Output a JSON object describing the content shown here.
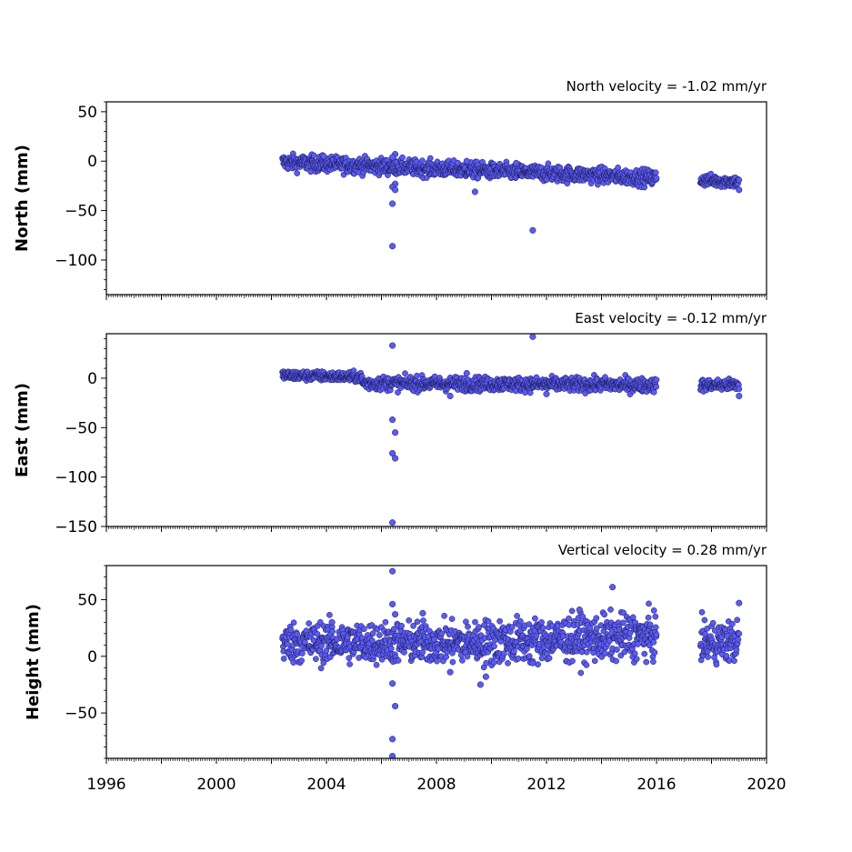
{
  "colors": {
    "point_fill": "#5b5bf2",
    "point_edge": "#15154a",
    "axis": "#000000"
  },
  "x_tick_labels": [
    "1996",
    "2000",
    "2004",
    "2008",
    "2012",
    "2016",
    "2020"
  ],
  "chart_data": [
    {
      "type": "scatter",
      "title": "North velocity = -1.02 mm/yr",
      "ylabel": "North (mm)",
      "xlim": [
        1996,
        2020
      ],
      "ylim": [
        -135,
        60
      ],
      "yticks": [
        50,
        0,
        -50,
        -100
      ],
      "ytick_labels": [
        "50",
        "0",
        "−50",
        "−100"
      ],
      "segments": [
        {
          "x0": 2002.4,
          "x1": 2016.0,
          "y0": -1,
          "y1": -17,
          "spread": 4
        },
        {
          "x0": 2017.6,
          "x1": 2019.0,
          "y0": -19,
          "y1": -21,
          "spread": 3
        }
      ],
      "outliers": [
        {
          "x": 2006.5,
          "y": 7
        },
        {
          "x": 2006.4,
          "y": 4
        },
        {
          "x": 2006.5,
          "y": -23
        },
        {
          "x": 2006.4,
          "y": -26
        },
        {
          "x": 2006.5,
          "y": -29
        },
        {
          "x": 2006.4,
          "y": -43
        },
        {
          "x": 2006.4,
          "y": -86
        },
        {
          "x": 2009.4,
          "y": -31
        },
        {
          "x": 2011.5,
          "y": -70
        },
        {
          "x": 2003.9,
          "y": 5
        },
        {
          "x": 2009.1,
          "y": 0
        },
        {
          "x": 2010.9,
          "y": -2
        },
        {
          "x": 2019.0,
          "y": -29
        }
      ]
    },
    {
      "type": "scatter",
      "title": "East velocity = -0.12 mm/yr",
      "ylabel": "East (mm)",
      "xlim": [
        1996,
        2020
      ],
      "ylim": [
        -150,
        45
      ],
      "yticks": [
        0,
        -50,
        -100,
        -150
      ],
      "ytick_labels": [
        "0",
        "−50",
        "−100",
        "−150"
      ],
      "segments": [
        {
          "x0": 2002.4,
          "x1": 2005.3,
          "y0": 3,
          "y1": 1,
          "spread": 2.5
        },
        {
          "x0": 2005.3,
          "x1": 2016.0,
          "y0": -5,
          "y1": -7,
          "spread": 3.5
        },
        {
          "x0": 2017.6,
          "x1": 2019.0,
          "y0": -7,
          "y1": -7,
          "spread": 3
        }
      ],
      "outliers": [
        {
          "x": 2006.4,
          "y": 33
        },
        {
          "x": 2011.5,
          "y": 42
        },
        {
          "x": 2006.4,
          "y": -42
        },
        {
          "x": 2006.5,
          "y": -55
        },
        {
          "x": 2006.4,
          "y": -76
        },
        {
          "x": 2006.5,
          "y": -81
        },
        {
          "x": 2006.4,
          "y": -146
        },
        {
          "x": 2008.5,
          "y": -18
        },
        {
          "x": 2012.0,
          "y": -16
        },
        {
          "x": 2009.1,
          "y": 5
        },
        {
          "x": 2019.0,
          "y": -18
        }
      ]
    },
    {
      "type": "scatter",
      "title": "Vertical velocity = 0.28 mm/yr",
      "ylabel": "Height (mm)",
      "xlim": [
        1996,
        2020
      ],
      "ylim": [
        -90,
        80
      ],
      "yticks": [
        50,
        0,
        -50
      ],
      "ytick_labels": [
        "50",
        "0",
        "−50"
      ],
      "segments": [
        {
          "x0": 2002.4,
          "x1": 2009.5,
          "y0": 12,
          "y1": 12,
          "spread": 9
        },
        {
          "x0": 2009.5,
          "x1": 2016.0,
          "y0": 12,
          "y1": 18,
          "spread": 10
        },
        {
          "x0": 2017.6,
          "x1": 2019.0,
          "y0": 12,
          "y1": 13,
          "spread": 9
        }
      ],
      "outliers": [
        {
          "x": 2006.4,
          "y": 75
        },
        {
          "x": 2006.4,
          "y": 46
        },
        {
          "x": 2006.5,
          "y": 37
        },
        {
          "x": 2006.4,
          "y": -24
        },
        {
          "x": 2006.5,
          "y": -44
        },
        {
          "x": 2006.4,
          "y": -73
        },
        {
          "x": 2006.4,
          "y": -88
        },
        {
          "x": 2014.4,
          "y": 61
        },
        {
          "x": 2009.6,
          "y": -25
        },
        {
          "x": 2009.8,
          "y": -18
        },
        {
          "x": 2008.5,
          "y": -14
        },
        {
          "x": 2011.5,
          "y": -6
        },
        {
          "x": 2013.2,
          "y": 41
        },
        {
          "x": 2007.5,
          "y": 38
        },
        {
          "x": 2019.0,
          "y": 47
        },
        {
          "x": 2004.2,
          "y": 30
        }
      ]
    }
  ]
}
